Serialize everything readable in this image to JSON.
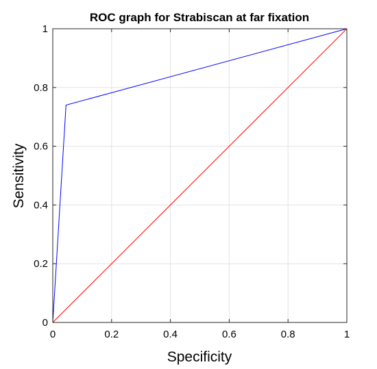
{
  "chart_data": {
    "type": "line",
    "title": "ROC graph for Strabiscan at far fixation",
    "xlabel": "Specificity",
    "ylabel": "Sensitivity",
    "xlim": [
      0,
      1
    ],
    "ylim": [
      0,
      1
    ],
    "xticks": [
      0,
      0.2,
      0.4,
      0.6,
      0.8,
      1
    ],
    "yticks": [
      0,
      0.2,
      0.4,
      0.6,
      0.8,
      1
    ],
    "xtick_labels": [
      "0",
      "0.2",
      "0.4",
      "0.6",
      "0.8",
      "1"
    ],
    "ytick_labels": [
      "0",
      "0.2",
      "0.4",
      "0.6",
      "0.8",
      "1"
    ],
    "grid": true,
    "series": [
      {
        "color": "#0000ff",
        "x": [
          0,
          0.045,
          1
        ],
        "y": [
          0,
          0.74,
          1
        ]
      },
      {
        "color": "#ff0000",
        "x": [
          0,
          1
        ],
        "y": [
          0,
          1
        ]
      }
    ]
  }
}
